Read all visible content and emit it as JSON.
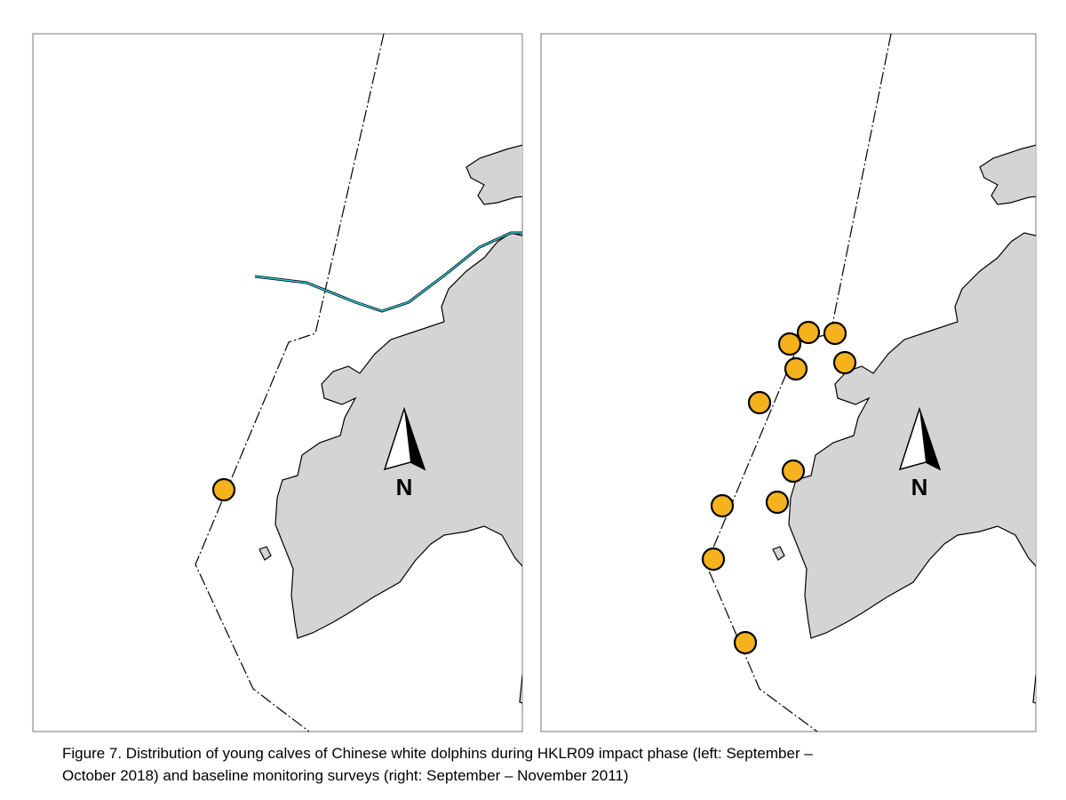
{
  "figure": {
    "panels": [
      {
        "north_label": "N"
      },
      {
        "north_label": "N"
      }
    ],
    "caption": {
      "lines": [
        "Figure 7.  Distribution of young calves of Chinese white dolphins during HKLR09 impact phase (left: September –",
        "October 2018) and baseline monitoring surveys (right: September – November 2011)"
      ]
    }
  }
}
